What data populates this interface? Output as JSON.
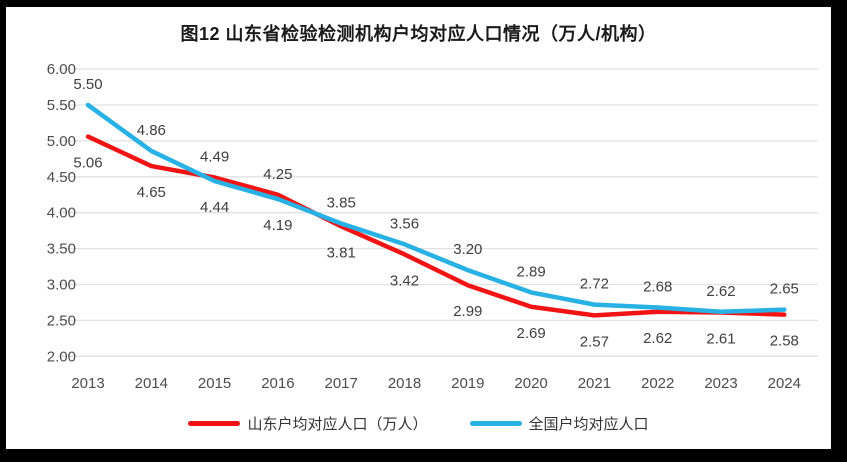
{
  "title": "图12 山东省检验检测机构户均对应人口情况（万人/机构）",
  "chart_data": {
    "type": "line",
    "x": [
      "2013",
      "2014",
      "2015",
      "2016",
      "2017",
      "2018",
      "2019",
      "2020",
      "2021",
      "2022",
      "2023",
      "2024"
    ],
    "series": [
      {
        "name": "山东户均对应人口（万人）",
        "color": "#f21414",
        "values": [
          5.06,
          4.65,
          4.49,
          4.25,
          3.81,
          3.42,
          2.99,
          2.69,
          2.57,
          2.62,
          2.61,
          2.58
        ],
        "labels": [
          "5.06",
          "4.65",
          "4.49",
          "4.25",
          "3.81",
          "3.42",
          "2.99",
          "2.69",
          "2.57",
          "2.62",
          "2.61",
          "2.58"
        ]
      },
      {
        "name": "全国户均对应人口",
        "color": "#28b1e5",
        "values": [
          5.5,
          4.86,
          4.44,
          4.19,
          3.85,
          3.56,
          3.2,
          2.89,
          2.72,
          2.68,
          2.62,
          2.65
        ],
        "labels": [
          "5.50",
          "4.86",
          "4.44",
          "4.19",
          "3.85",
          "3.56",
          "3.20",
          "2.89",
          "2.72",
          "2.68",
          "2.62",
          "2.65"
        ]
      }
    ],
    "xlabel": "",
    "ylabel": "",
    "ylim": [
      2.0,
      6.0
    ],
    "yticks": [
      "6.00",
      "5.50",
      "5.00",
      "4.50",
      "4.00",
      "3.50",
      "3.00",
      "2.50",
      "2.00"
    ],
    "grid": true,
    "grid_color": "#e2e2e2",
    "data_labels": true,
    "legend_position": "bottom"
  }
}
